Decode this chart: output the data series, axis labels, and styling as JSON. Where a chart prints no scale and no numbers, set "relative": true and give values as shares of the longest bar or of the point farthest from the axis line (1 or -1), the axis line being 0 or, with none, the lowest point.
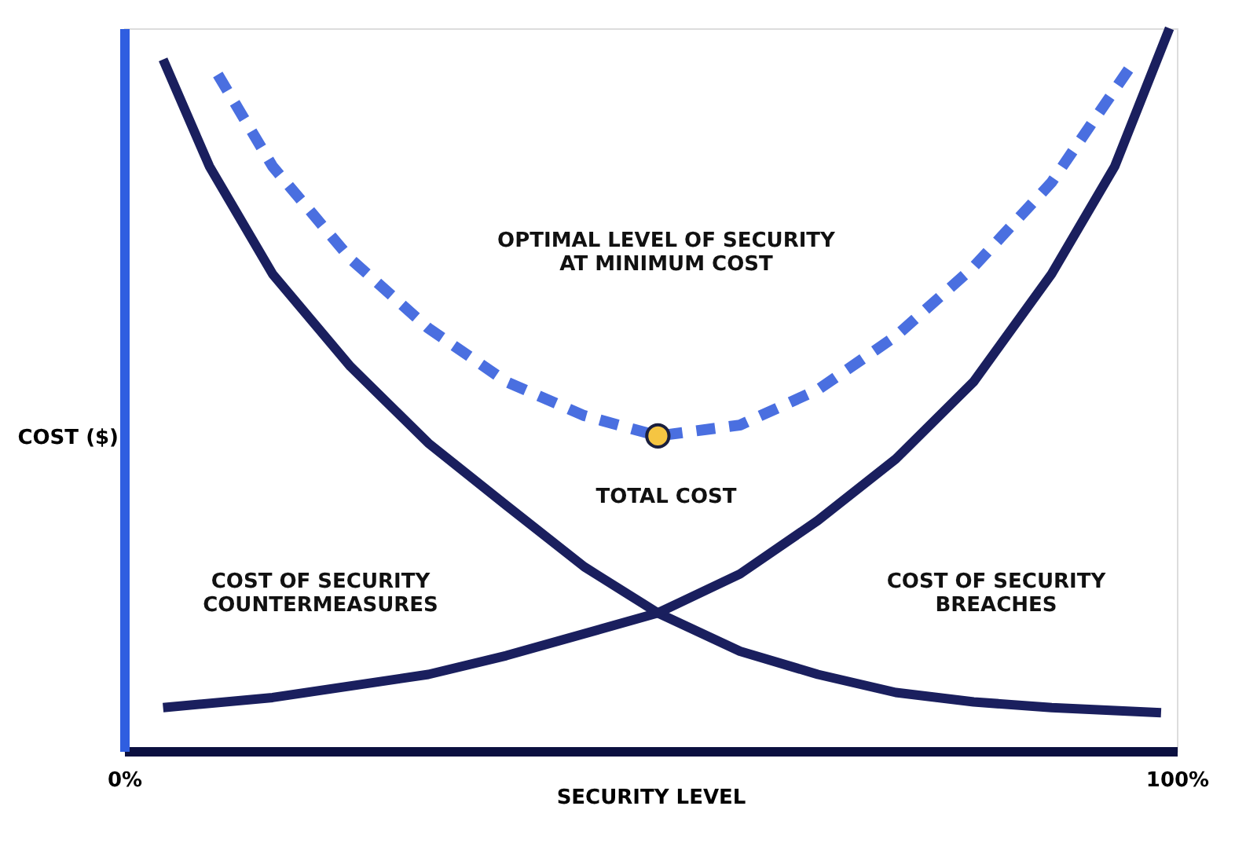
{
  "chart_data": {
    "type": "line",
    "relative": true,
    "xlabel": "SECURITY LEVEL",
    "ylabel": "COST ($)",
    "xlim": [
      0,
      100
    ],
    "xticks": [
      {
        "value": 0,
        "label": "0%"
      },
      {
        "value": 100,
        "label": "100%"
      }
    ],
    "series": [
      {
        "line_style": "solid",
        "color": "#1a1f5e",
        "x": [
          3.7,
          8.1,
          14.1,
          21.5,
          28.9,
          36.3,
          43.7,
          50.7,
          58.5,
          65.9,
          73.3,
          80.7,
          88.1,
          98.5
        ],
        "values": [
          0.957,
          0.809,
          0.66,
          0.532,
          0.426,
          0.34,
          0.255,
          0.191,
          0.138,
          0.106,
          0.081,
          0.068,
          0.06,
          0.053
        ]
      },
      {
        "line_style": "solid",
        "color": "#1a1f5e",
        "x": [
          3.7,
          14.1,
          28.9,
          36.3,
          50.7,
          58.5,
          65.9,
          73.3,
          80.7,
          88.1,
          94.1,
          99.3
        ],
        "values": [
          0.06,
          0.074,
          0.106,
          0.132,
          0.191,
          0.245,
          0.319,
          0.404,
          0.511,
          0.66,
          0.809,
          1.0
        ]
      },
      {
        "line_style": "dashed",
        "color": "#4a6fe0",
        "x": [
          8.9,
          14.1,
          21.5,
          28.9,
          36.3,
          43.7,
          50.7,
          58.5,
          65.9,
          73.3,
          80.7,
          88.1,
          95.6
        ],
        "values": [
          0.936,
          0.809,
          0.681,
          0.585,
          0.511,
          0.464,
          0.436,
          0.451,
          0.5,
          0.574,
          0.67,
          0.787,
          0.947
        ]
      },
      {
        "type": "scatter",
        "marker": "circle",
        "color": "#f5c542",
        "x": [
          50.7
        ],
        "values": [
          0.436
        ]
      }
    ],
    "annotations": [
      "OPTIMAL LEVEL OF SECURITY\nAT MINIMUM COST",
      "TOTAL COST",
      "COST OF SECURITY\nCOUNTERMEASURES",
      "COST OF SECURITY\nBREACHES"
    ]
  }
}
